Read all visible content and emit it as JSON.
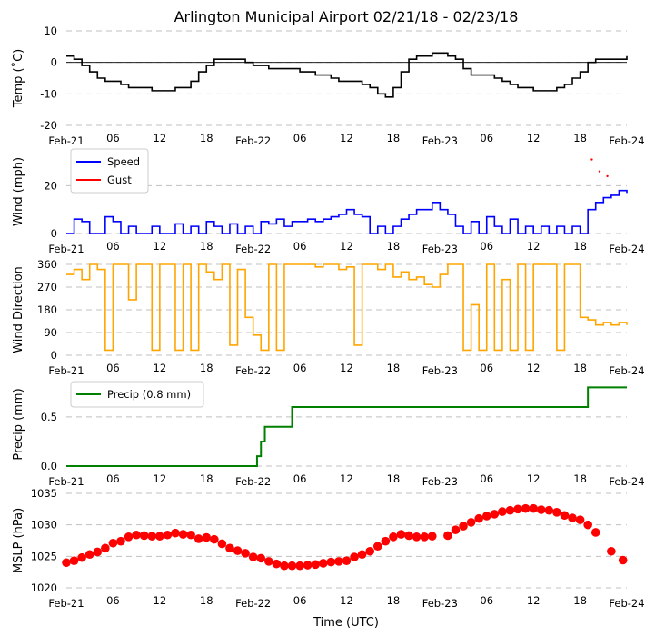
{
  "title": "Arlington Municipal Airport 02/21/18 - 02/23/18",
  "xlabel": "Time (UTC)",
  "x_ticks": [
    {
      "hour": 0,
      "label": "Feb-21"
    },
    {
      "hour": 6,
      "label": "06"
    },
    {
      "hour": 12,
      "label": "12"
    },
    {
      "hour": 18,
      "label": "18"
    },
    {
      "hour": 24,
      "label": "Feb-22"
    },
    {
      "hour": 30,
      "label": "06"
    },
    {
      "hour": 36,
      "label": "12"
    },
    {
      "hour": 42,
      "label": "18"
    },
    {
      "hour": 48,
      "label": "Feb-23"
    },
    {
      "hour": 54,
      "label": "06"
    },
    {
      "hour": 60,
      "label": "12"
    },
    {
      "hour": 66,
      "label": "18"
    },
    {
      "hour": 72,
      "label": "Feb-24"
    }
  ],
  "colors": {
    "temp": "#000000",
    "speed": "#0000ff",
    "gust": "#ff0000",
    "direction": "#ffa500",
    "precip": "#008000",
    "mslp": "#ff0000",
    "grid": "#c0c0c0"
  },
  "chart_data": [
    {
      "id": "temp",
      "type": "line",
      "ylabel": "Temp ($^\\circ$C)",
      "ylabel_display": "Temp (˚C)",
      "ylim": [
        -20,
        10
      ],
      "yticks": [
        -20,
        -10,
        0,
        10
      ],
      "grid": true,
      "zero_line": true,
      "series": [
        {
          "name": "Temp",
          "x": [
            0,
            1,
            2,
            3,
            4,
            5,
            6,
            7,
            8,
            9,
            10,
            11,
            12,
            13,
            14,
            15,
            16,
            17,
            18,
            19,
            20,
            21,
            22,
            23,
            24,
            25,
            26,
            27,
            28,
            29,
            30,
            31,
            32,
            33,
            34,
            35,
            36,
            37,
            38,
            39,
            40,
            41,
            42,
            43,
            44,
            45,
            46,
            47,
            48,
            49,
            50,
            51,
            52,
            53,
            54,
            55,
            56,
            57,
            58,
            59,
            60,
            61,
            62,
            63,
            64,
            65,
            66,
            67,
            68,
            69,
            70,
            71,
            72
          ],
          "y": [
            2,
            1,
            -1,
            -3,
            -5,
            -6,
            -6,
            -7,
            -8,
            -8,
            -8,
            -9,
            -9,
            -9,
            -8,
            -8,
            -6,
            -3,
            -1,
            1,
            1,
            1,
            1,
            0,
            -1,
            -1,
            -2,
            -2,
            -2,
            -2,
            -3,
            -3,
            -4,
            -4,
            -5,
            -6,
            -6,
            -6,
            -7,
            -8,
            -10,
            -11,
            -8,
            -3,
            1,
            2,
            2,
            3,
            3,
            2,
            1,
            -2,
            -4,
            -4,
            -4,
            -5,
            -6,
            -7,
            -8,
            -8,
            -9,
            -9,
            -9,
            -8,
            -7,
            -5,
            -3,
            0,
            1,
            1,
            1,
            1,
            2
          ]
        }
      ]
    },
    {
      "id": "wind",
      "type": "line",
      "ylabel": "Wind (mph)",
      "ylim": [
        0,
        35
      ],
      "yticks": [
        0,
        20
      ],
      "grid": true,
      "legend": "upper left",
      "series": [
        {
          "name": "Speed",
          "x": [
            0,
            1,
            2,
            3,
            4,
            5,
            6,
            7,
            8,
            9,
            10,
            11,
            12,
            13,
            14,
            15,
            16,
            17,
            18,
            19,
            20,
            21,
            22,
            23,
            24,
            25,
            26,
            27,
            28,
            29,
            30,
            31,
            32,
            33,
            34,
            35,
            36,
            37,
            38,
            39,
            40,
            41,
            42,
            43,
            44,
            45,
            46,
            47,
            48,
            49,
            50,
            51,
            52,
            53,
            54,
            55,
            56,
            57,
            58,
            59,
            60,
            61,
            62,
            63,
            64,
            65,
            66,
            67,
            68,
            69,
            70,
            71,
            72
          ],
          "y": [
            0,
            6,
            5,
            0,
            0,
            7,
            5,
            0,
            3,
            0,
            0,
            3,
            0,
            0,
            4,
            0,
            3,
            0,
            5,
            3,
            0,
            4,
            0,
            3,
            0,
            5,
            4,
            6,
            3,
            5,
            5,
            6,
            5,
            6,
            7,
            8,
            10,
            8,
            7,
            0,
            3,
            0,
            3,
            6,
            8,
            10,
            10,
            13,
            10,
            8,
            3,
            0,
            5,
            0,
            7,
            3,
            0,
            6,
            0,
            3,
            0,
            3,
            0,
            3,
            0,
            3,
            0,
            10,
            13,
            15,
            16,
            18,
            17
          ]
        },
        {
          "name": "Gust",
          "x": [
            67.5,
            68.5,
            69.5
          ],
          "y": [
            31,
            26,
            24
          ]
        }
      ]
    },
    {
      "id": "direction",
      "type": "line",
      "ylabel": "Wind Direction",
      "ylim": [
        0,
        360
      ],
      "yticks": [
        0,
        90,
        180,
        270,
        360
      ],
      "grid": true,
      "series": [
        {
          "name": "Direction",
          "x": [
            0,
            1,
            2,
            3,
            4,
            5,
            6,
            7,
            8,
            9,
            10,
            11,
            12,
            13,
            14,
            15,
            16,
            17,
            18,
            19,
            20,
            21,
            22,
            23,
            24,
            25,
            26,
            27,
            28,
            29,
            30,
            31,
            32,
            33,
            34,
            35,
            36,
            37,
            38,
            39,
            40,
            41,
            42,
            43,
            44,
            45,
            46,
            47,
            48,
            49,
            50,
            51,
            52,
            53,
            54,
            55,
            56,
            57,
            58,
            59,
            60,
            61,
            62,
            63,
            64,
            65,
            66,
            67,
            68,
            69,
            70,
            71,
            72
          ],
          "y": [
            320,
            340,
            300,
            360,
            340,
            20,
            360,
            360,
            220,
            360,
            360,
            20,
            360,
            360,
            20,
            360,
            20,
            360,
            330,
            300,
            360,
            40,
            340,
            150,
            80,
            20,
            360,
            20,
            360,
            360,
            360,
            360,
            350,
            360,
            360,
            340,
            350,
            40,
            360,
            360,
            340,
            360,
            310,
            330,
            300,
            310,
            280,
            270,
            320,
            360,
            360,
            20,
            200,
            20,
            360,
            20,
            300,
            20,
            360,
            20,
            360,
            360,
            360,
            20,
            360,
            360,
            150,
            140,
            120,
            130,
            120,
            130,
            120
          ]
        }
      ]
    },
    {
      "id": "precip",
      "type": "line",
      "ylabel": "Precip (mm)",
      "ylim": [
        0,
        0.85
      ],
      "yticks": [
        0.0,
        0.5
      ],
      "ytick_labels": [
        "0.0",
        "0.5"
      ],
      "grid": true,
      "legend": "upper left",
      "series": [
        {
          "name": "Precip (0.8 mm)",
          "x": [
            0,
            24,
            24.5,
            25,
            25.5,
            26,
            27,
            28.5,
            29,
            50,
            66.5,
            67,
            72
          ],
          "y": [
            0,
            0,
            0.1,
            0.25,
            0.4,
            0.4,
            0.4,
            0.4,
            0.6,
            0.6,
            0.6,
            0.8,
            0.8
          ]
        }
      ]
    },
    {
      "id": "mslp",
      "type": "scatter",
      "ylabel": "MSLP (hPa)",
      "ylim": [
        1020,
        1035
      ],
      "yticks": [
        1020,
        1025,
        1030,
        1035
      ],
      "grid": true,
      "series": [
        {
          "name": "MSLP",
          "x": [
            0,
            1,
            2,
            3,
            4,
            5,
            6,
            7,
            8,
            9,
            10,
            11,
            12,
            13,
            14,
            15,
            16,
            17,
            18,
            19,
            20,
            21,
            22,
            23,
            24,
            25,
            26,
            27,
            28,
            29,
            30,
            31,
            32,
            33,
            34,
            35,
            36,
            37,
            38,
            39,
            40,
            41,
            42,
            43,
            44,
            45,
            46,
            47,
            49,
            50,
            51,
            52,
            53,
            54,
            55,
            56,
            57,
            58,
            59,
            60,
            61,
            62,
            63,
            64,
            65,
            66,
            67,
            68,
            70,
            71.5
          ],
          "y": [
            1024,
            1024.3,
            1024.8,
            1025.3,
            1025.7,
            1026.3,
            1027.1,
            1027.4,
            1028.1,
            1028.4,
            1028.3,
            1028.2,
            1028.2,
            1028.4,
            1028.7,
            1028.5,
            1028.4,
            1027.8,
            1028.0,
            1027.7,
            1027.0,
            1026.3,
            1025.9,
            1025.5,
            1024.9,
            1024.7,
            1024.2,
            1023.8,
            1023.5,
            1023.5,
            1023.5,
            1023.6,
            1023.7,
            1023.9,
            1024.1,
            1024.2,
            1024.3,
            1024.9,
            1025.3,
            1025.8,
            1026.6,
            1027.4,
            1028.1,
            1028.5,
            1028.3,
            1028.1,
            1028.1,
            1028.2,
            1028.3,
            1029.2,
            1029.8,
            1030.4,
            1031.0,
            1031.4,
            1031.7,
            1032.1,
            1032.3,
            1032.5,
            1032.6,
            1032.6,
            1032.4,
            1032.3,
            1032.0,
            1031.5,
            1031.1,
            1030.8,
            1030.0,
            1028.8,
            1025.8,
            1024.4
          ]
        }
      ]
    }
  ]
}
